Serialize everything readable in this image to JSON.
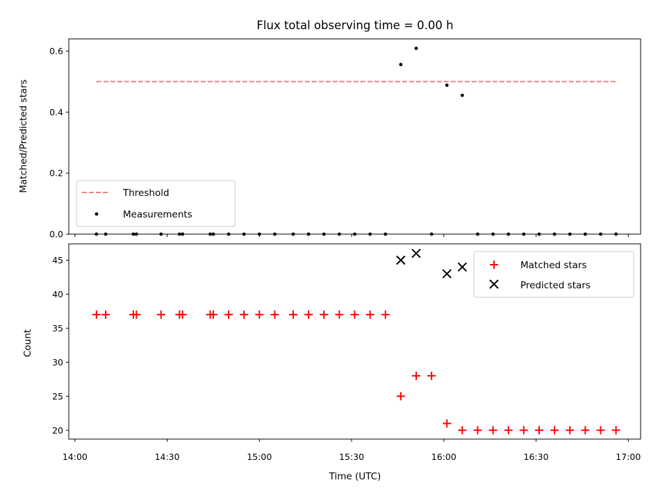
{
  "chart_data": [
    {
      "type": "scatter",
      "title": "Flux total observing time = 0.00 h",
      "xlabel": "",
      "ylabel": "Matched/Predicted stars",
      "xlim": [
        "13:58",
        "17:04"
      ],
      "ylim": [
        0,
        0.64
      ],
      "yticks": [
        0.0,
        0.2,
        0.4,
        0.6
      ],
      "ytick_labels": [
        "0.0",
        "0.2",
        "0.4",
        "0.6"
      ],
      "grid": false,
      "legend_position": "lower-left",
      "threshold": {
        "name": "Threshold",
        "value": 0.5,
        "x_range": [
          "14:07",
          "16:56"
        ],
        "color": "#f08080",
        "style": "dashed"
      },
      "series": [
        {
          "name": "Measurements",
          "marker": "dot",
          "color": "#000000",
          "x": [
            "14:07",
            "14:10",
            "14:19",
            "14:20",
            "14:28",
            "14:34",
            "14:35",
            "14:44",
            "14:45",
            "14:50",
            "14:55",
            "15:00",
            "15:05",
            "15:11",
            "15:16",
            "15:21",
            "15:26",
            "15:31",
            "15:36",
            "15:41",
            "15:46",
            "15:51",
            "15:56",
            "16:01",
            "16:06",
            "16:11",
            "16:16",
            "16:21",
            "16:26",
            "16:31",
            "16:36",
            "16:41",
            "16:46",
            "16:51",
            "16:56"
          ],
          "y": [
            0,
            0,
            0,
            0,
            0,
            0,
            0,
            0,
            0,
            0,
            0,
            0,
            0,
            0,
            0,
            0,
            0,
            0,
            0,
            0,
            0.556,
            0.609,
            0,
            0.488,
            0.455,
            0,
            0,
            0,
            0,
            0,
            0,
            0,
            0,
            0,
            0
          ]
        }
      ]
    },
    {
      "type": "scatter",
      "title": "",
      "xlabel": "Time (UTC)",
      "ylabel": "Count",
      "xlim": [
        "13:58",
        "17:04"
      ],
      "ylim": [
        18.7,
        47.4
      ],
      "xtick_labels": [
        "14:00",
        "14:30",
        "15:00",
        "15:30",
        "16:00",
        "16:30",
        "17:00"
      ],
      "yticks": [
        20,
        25,
        30,
        35,
        40,
        45
      ],
      "ytick_labels": [
        "20",
        "25",
        "30",
        "35",
        "40",
        "45"
      ],
      "grid": false,
      "legend_position": "top-right",
      "series": [
        {
          "name": "Matched stars",
          "marker": "plus",
          "color": "#ff0000",
          "x": [
            "14:07",
            "14:10",
            "14:19",
            "14:20",
            "14:28",
            "14:34",
            "14:35",
            "14:44",
            "14:45",
            "14:50",
            "14:55",
            "15:00",
            "15:05",
            "15:11",
            "15:16",
            "15:21",
            "15:26",
            "15:31",
            "15:36",
            "15:41",
            "15:46",
            "15:51",
            "15:56",
            "16:01",
            "16:06",
            "16:11",
            "16:16",
            "16:21",
            "16:26",
            "16:31",
            "16:36",
            "16:41",
            "16:46",
            "16:51",
            "16:56"
          ],
          "y": [
            37,
            37,
            37,
            37,
            37,
            37,
            37,
            37,
            37,
            37,
            37,
            37,
            37,
            37,
            37,
            37,
            37,
            37,
            37,
            37,
            25,
            28,
            28,
            21,
            20,
            20,
            20,
            20,
            20,
            20,
            20,
            20,
            20,
            20,
            20
          ]
        },
        {
          "name": "Predicted stars",
          "marker": "x",
          "color": "#000000",
          "x": [
            "15:46",
            "15:51",
            "16:01",
            "16:06"
          ],
          "y": [
            45,
            46,
            43,
            44
          ]
        }
      ]
    }
  ]
}
